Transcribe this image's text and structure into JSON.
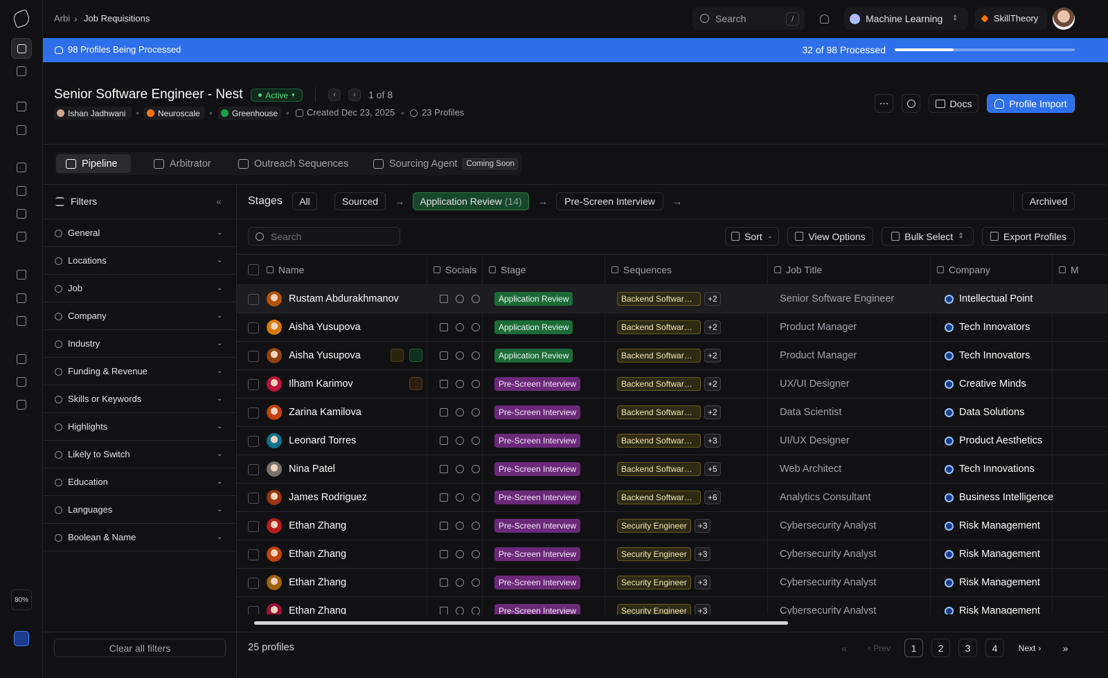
{
  "nav": {
    "breadcrumb": [
      "Arbi",
      "Job Requisitions"
    ],
    "search": "Search",
    "search_key": "/",
    "workspace": "Machine Learning",
    "org": "SkillTheory",
    "zoom": "80%"
  },
  "banner": {
    "title": "98 Profiles Being Processed",
    "progress": {
      "label": "32 of 98 Processed",
      "done": 32,
      "total": 98
    }
  },
  "job": {
    "title": "Senior Software Engineer - Nest",
    "status": "Active",
    "pager": "1 of 8",
    "owner": "Ishan Jadhwani",
    "client": "Neuroscale",
    "ats": "Greenhouse",
    "created": "Created Dec 23, 2025",
    "profiles": "23 Profiles",
    "actions": [
      "Docs",
      "Profile Import"
    ]
  },
  "tabs": {
    "items": [
      "Pipeline",
      "Arbitrator",
      "Outreach Sequences",
      "Sourcing Agent"
    ],
    "badge": "Coming Soon"
  },
  "filters": {
    "title": "Filters",
    "items": [
      "General",
      "Locations",
      "Job",
      "Company",
      "Industry",
      "Funding & Revenue",
      "Skills or Keywords",
      "Highlights",
      "Likely to Switch",
      "Education",
      "Languages",
      "Boolean & Name"
    ],
    "clear": "Clear all filters"
  },
  "stages": {
    "label": "Stages",
    "all": "All",
    "items": [
      {
        "name": "Sourced"
      },
      {
        "name": "Application Review",
        "count": "(14)"
      },
      {
        "name": "Pre-Screen Interview"
      }
    ],
    "archived": "Archived"
  },
  "toolbar": {
    "search": "Search",
    "buttons": [
      "Sort",
      "View Options",
      "Bulk Select",
      "Export Profiles"
    ]
  },
  "table": {
    "columns": [
      "Name",
      "Socials",
      "Stage",
      "Sequences",
      "Job Title",
      "Company",
      "M"
    ],
    "rows": [
      {
        "name": "Rustam Abdurakhmanov",
        "stage": "Application Review",
        "sequence": "Backend Software…",
        "more": "+2",
        "title": "Senior Software Engineer",
        "company": "Intellectual Point"
      },
      {
        "name": "Aisha Yusupova",
        "stage": "Application Review",
        "sequence": "Backend Software…",
        "more": "+2",
        "title": "Product Manager",
        "company": "Tech Innovators"
      },
      {
        "name": "Aisha Yusupova",
        "stage": "Application Review",
        "sequence": "Backend Software…",
        "more": "+2",
        "title": "Product Manager",
        "company": "Tech Innovators"
      },
      {
        "name": "Ilham Karimov",
        "stage": "Pre-Screen Interview",
        "sequence": "Backend Software…",
        "more": "+2",
        "title": "UX/UI Designer",
        "company": "Creative Minds"
      },
      {
        "name": "Zarina Kamilova",
        "stage": "Pre-Screen Interview",
        "sequence": "Backend Software…",
        "more": "+2",
        "title": "Data Scientist",
        "company": "Data Solutions"
      },
      {
        "name": "Leonard Torres",
        "stage": "Pre-Screen Interview",
        "sequence": "Backend Software…",
        "more": "+3",
        "title": "UI/UX Designer",
        "company": "Product Aesthetics"
      },
      {
        "name": "Nina Patel",
        "stage": "Pre-Screen Interview",
        "sequence": "Backend Software…",
        "more": "+5",
        "title": "Web Architect",
        "company": "Tech Innovations"
      },
      {
        "name": "James Rodriguez",
        "stage": "Pre-Screen Interview",
        "sequence": "Backend Software…",
        "more": "+6",
        "title": "Analytics Consultant",
        "company": "Business Intelligence"
      },
      {
        "name": "Ethan Zhang",
        "stage": "Pre-Screen Interview",
        "sequence": "Security Engineer",
        "more": "+3",
        "title": "Cybersecurity Analyst",
        "company": "Risk Management"
      },
      {
        "name": "Ethan Zhang",
        "stage": "Pre-Screen Interview",
        "sequence": "Security Engineer",
        "more": "+3",
        "title": "Cybersecurity Analyst",
        "company": "Risk Management"
      },
      {
        "name": "Ethan Zhang",
        "stage": "Pre-Screen Interview",
        "sequence": "Security Engineer",
        "more": "+3",
        "title": "Cybersecurity Analyst",
        "company": "Risk Management"
      },
      {
        "name": "Ethan Zhang",
        "stage": "Pre-Screen Interview",
        "sequence": "Security Engineer",
        "more": "+3",
        "title": "Cybersecurity Analyst",
        "company": "Risk Management"
      }
    ]
  },
  "footer": {
    "count": "25 profiles",
    "prev": "Prev",
    "pages": [
      1,
      2,
      3,
      4
    ],
    "next": "Next"
  }
}
